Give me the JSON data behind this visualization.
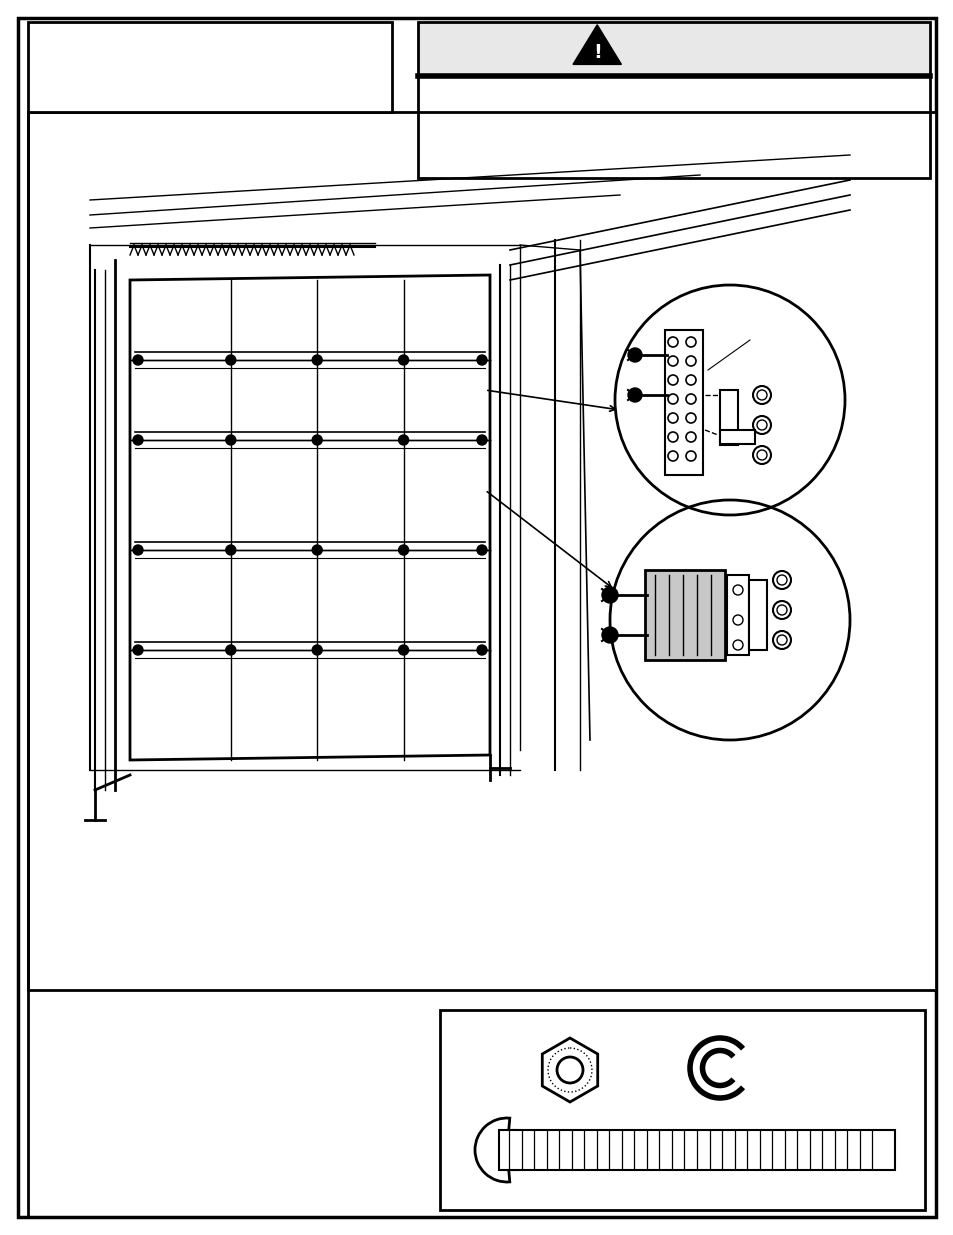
{
  "bg_color": "#ffffff",
  "figsize": [
    9.54,
    12.35
  ],
  "dpi": 100
}
